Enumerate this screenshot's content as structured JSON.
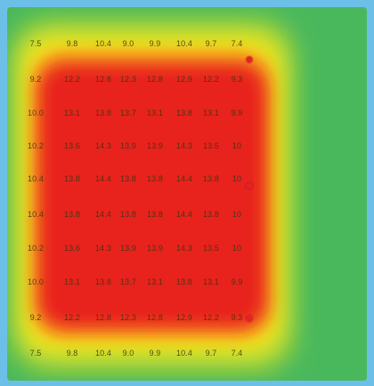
{
  "heatmap": {
    "colors": {
      "hot": "#e8231e",
      "warm": "#f7e81a",
      "mid": "#9bd23c",
      "cool": "#49b85c",
      "edge": "#6cc0e8",
      "marker": "#e8202a"
    },
    "rows": [
      [
        "7.5",
        "9.8",
        "10.4",
        "9.0",
        "9.9",
        "10.4",
        "9.7",
        "7.4"
      ],
      [
        "9.2",
        "12.2",
        "12.8",
        "12.3",
        "12.8",
        "12.9",
        "12.2",
        "9.3"
      ],
      [
        "10.0",
        "13.1",
        "13.8",
        "13.7",
        "13.1",
        "13.8",
        "13.1",
        "9.9"
      ],
      [
        "10.2",
        "13.6",
        "14.3",
        "13.9",
        "13.9",
        "14.3",
        "13.5",
        "10"
      ],
      [
        "10.4",
        "13.8",
        "14.4",
        "13.8",
        "13.8",
        "14.4",
        "13.8",
        "10"
      ],
      [
        "10.4",
        "13.8",
        "14.4",
        "13.8",
        "13.8",
        "14.4",
        "13.8",
        "10"
      ],
      [
        "10.2",
        "13.6",
        "14.3",
        "13.9",
        "13.9",
        "14.3",
        "13.5",
        "10"
      ],
      [
        "10.0",
        "13.1",
        "13.8",
        "13.7",
        "13.1",
        "13.8",
        "13.1",
        "9.9"
      ],
      [
        "9.2",
        "12.2",
        "12.8",
        "12.3",
        "12.8",
        "12.9",
        "12.2",
        "9.3"
      ],
      [
        "7.5",
        "9.8",
        "10.4",
        "9.0",
        "9.9",
        "10.4",
        "9.7",
        "7.4"
      ]
    ],
    "markers_at_rows": [
      1,
      4,
      8
    ]
  }
}
